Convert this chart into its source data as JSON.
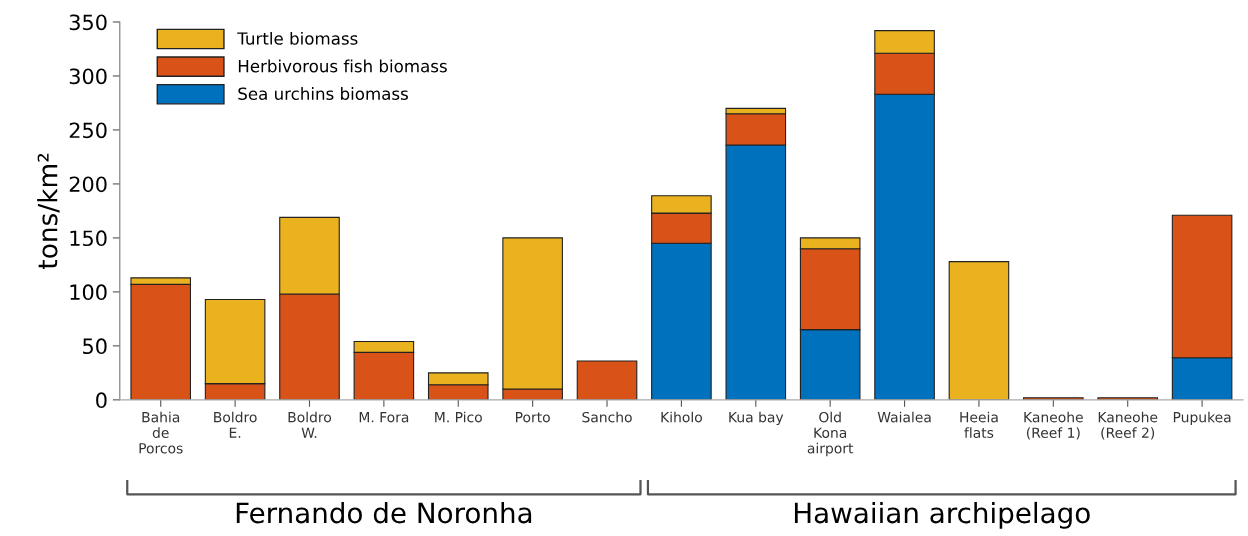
{
  "chart_data": {
    "type": "bar",
    "stacked": true,
    "ylabel": "tons/km²",
    "categories": [
      "Bahia\nde\nPorcos",
      "Boldro\nE.",
      "Boldro\nW.",
      "M. Fora",
      "M. Pico",
      "Porto",
      "Sancho",
      "Kiholo",
      "Kua bay",
      "Old\nKona\nairport",
      "Waialea",
      "Heeia\nflats",
      "Kaneohe\n(Reef 1)",
      "Kaneohe\n(Reef 2)",
      "Pupukea"
    ],
    "series": [
      {
        "name": "Sea urchins biomass",
        "color": "#0072bd",
        "values": [
          null,
          null,
          null,
          null,
          null,
          null,
          null,
          145,
          236,
          65,
          283,
          null,
          null,
          null,
          39
        ]
      },
      {
        "name": "Herbivorous fish biomass",
        "color": "#d95319",
        "values": [
          107,
          15,
          98,
          44,
          14,
          10,
          36,
          28,
          29,
          75,
          38,
          null,
          2,
          2,
          132
        ]
      },
      {
        "name": "Turtle biomass",
        "color": "#ebb220",
        "values": [
          6,
          78,
          71,
          10,
          11,
          140,
          null,
          16,
          5,
          10,
          21,
          128,
          null,
          null,
          null
        ]
      }
    ],
    "ylim": [
      0,
      350
    ],
    "yticks": [
      0,
      50,
      100,
      150,
      200,
      250,
      300,
      350
    ],
    "legend": "top left",
    "annotations": [
      "Fernando de Noronha",
      "Hawaiian archipelago"
    ]
  }
}
